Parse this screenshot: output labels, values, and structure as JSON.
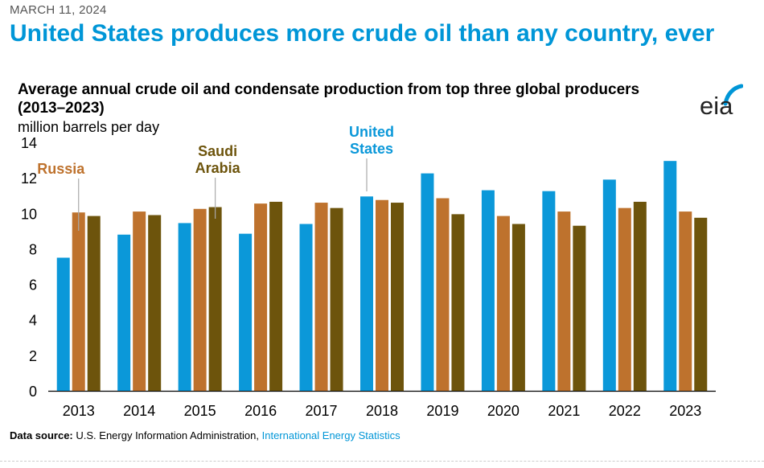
{
  "date": "MARCH 11, 2024",
  "headline": "United States produces more crude oil than any country, ever",
  "chart_title_line1": "Average annual crude oil and condensate production from top three global producers",
  "chart_title_line2": "(2013–2023)",
  "unit_label": "million barrels per day",
  "logo_text": "eia",
  "source": {
    "label": "Data source:",
    "text": "U.S. Energy Information Administration,",
    "link": "International Energy Statistics"
  },
  "colors": {
    "united_states": "#0b98d9",
    "russia": "#be722d",
    "saudi_arabia": "#6d540c",
    "headline": "#0096d7"
  },
  "chart_data": {
    "type": "bar",
    "title": "Average annual crude oil and condensate production from top three global producers (2013–2023)",
    "ylabel": "million barrels per day",
    "xlabel": "",
    "ylim": [
      0,
      14
    ],
    "yticks": [
      0,
      2,
      4,
      6,
      8,
      10,
      12,
      14
    ],
    "grid": false,
    "legend": "direct labels",
    "categories": [
      "2013",
      "2014",
      "2015",
      "2016",
      "2017",
      "2018",
      "2019",
      "2020",
      "2021",
      "2022",
      "2023"
    ],
    "series": [
      {
        "name": "United States",
        "label_lines": [
          "United",
          "States"
        ],
        "color": "#0b98d9",
        "values": [
          7.5,
          8.8,
          9.45,
          8.85,
          9.4,
          10.95,
          12.25,
          11.3,
          11.25,
          11.9,
          12.95
        ]
      },
      {
        "name": "Russia",
        "label_lines": [
          "Russia"
        ],
        "color": "#be722d",
        "values": [
          10.05,
          10.1,
          10.25,
          10.55,
          10.6,
          10.75,
          10.85,
          9.85,
          10.1,
          10.3,
          10.1
        ]
      },
      {
        "name": "Saudi Arabia",
        "label_lines": [
          "Saudi",
          "Arabia"
        ],
        "color": "#6d540c",
        "values": [
          9.85,
          9.9,
          10.35,
          10.65,
          10.3,
          10.6,
          9.95,
          9.4,
          9.3,
          10.65,
          9.75
        ]
      }
    ]
  }
}
